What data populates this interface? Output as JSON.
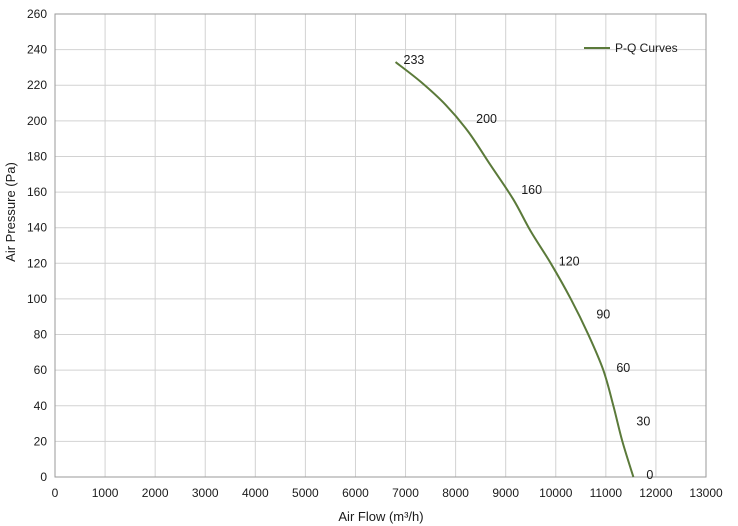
{
  "chart_data": {
    "type": "line",
    "title": "",
    "xlabel": "Air Flow  (m³/h)",
    "ylabel": "Air Pressure  (Pa)",
    "xlim": [
      0,
      13000
    ],
    "ylim": [
      0,
      260
    ],
    "x_ticks": [
      0,
      1000,
      2000,
      3000,
      4000,
      5000,
      6000,
      7000,
      8000,
      9000,
      10000,
      11000,
      12000,
      13000
    ],
    "y_ticks": [
      0,
      20,
      40,
      60,
      80,
      100,
      120,
      140,
      160,
      180,
      200,
      220,
      240,
      260
    ],
    "grid": true,
    "legend_position": "top-right",
    "series": [
      {
        "name": "P-Q Curves",
        "color": "#5b7a3a",
        "points": [
          {
            "x": 6800,
            "y": 233
          },
          {
            "x": 7300,
            "y": 222
          },
          {
            "x": 7800,
            "y": 209
          },
          {
            "x": 8250,
            "y": 194
          },
          {
            "x": 8700,
            "y": 175
          },
          {
            "x": 9150,
            "y": 156
          },
          {
            "x": 9500,
            "y": 138
          },
          {
            "x": 9900,
            "y": 120
          },
          {
            "x": 10300,
            "y": 100
          },
          {
            "x": 10650,
            "y": 80
          },
          {
            "x": 10950,
            "y": 60
          },
          {
            "x": 11150,
            "y": 40
          },
          {
            "x": 11330,
            "y": 20
          },
          {
            "x": 11550,
            "y": 0
          }
        ]
      }
    ],
    "annotations": [
      {
        "text": "233",
        "x": 6800,
        "y": 233
      },
      {
        "text": "200",
        "x": 8250,
        "y": 200
      },
      {
        "text": "160",
        "x": 9150,
        "y": 160
      },
      {
        "text": "120",
        "x": 9900,
        "y": 120
      },
      {
        "text": "90",
        "x": 10650,
        "y": 90
      },
      {
        "text": "60",
        "x": 11050,
        "y": 60
      },
      {
        "text": "30",
        "x": 11450,
        "y": 30
      },
      {
        "text": "0",
        "x": 11650,
        "y": 0
      }
    ]
  }
}
